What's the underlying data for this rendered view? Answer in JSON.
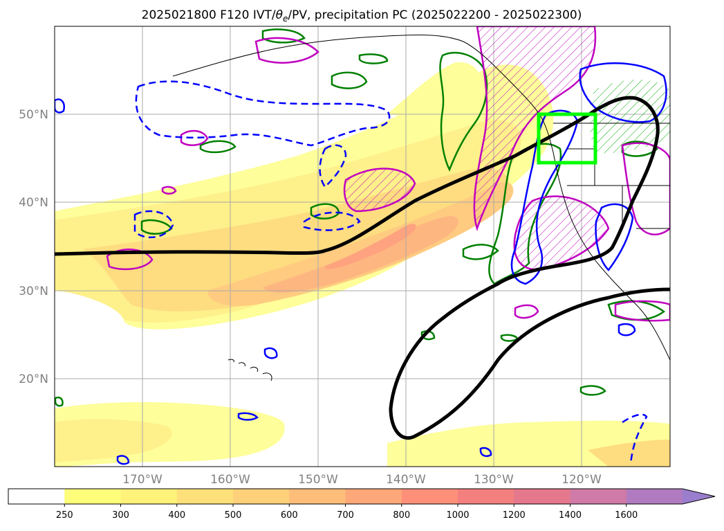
{
  "figure": {
    "title_main": "2025021800 F120 IVT/",
    "title_theta": "θ",
    "title_sub": "e",
    "title_rest": "/PV, precipitation PC (2025022200 - 2025022300)"
  },
  "map": {
    "lat_labels": [
      "50°N",
      "40°N",
      "30°N",
      "20°N"
    ],
    "lon_labels": [
      "170°W",
      "160°W",
      "150°W",
      "140°W",
      "130°W",
      "120°W"
    ],
    "highlight_box_color": "#00ff00",
    "series_colors": {
      "ivt_front": "#000000",
      "pv_positive": "#0000ff",
      "theta_e": "#00aa00",
      "precip_pc": "#c000c0"
    }
  },
  "colorbar": {
    "ticks": [
      "250",
      "300",
      "400",
      "500",
      "600",
      "700",
      "800",
      "1000",
      "1200",
      "1400",
      "1600"
    ],
    "colors": [
      "#ffffff",
      "#fefe7a",
      "#fef27a",
      "#fee07a",
      "#fed07a",
      "#febe7a",
      "#fea87a",
      "#fe907a",
      "#f37f7f",
      "#e6788d",
      "#d07aa7",
      "#b07bc0",
      "#9a7dcc"
    ]
  }
}
